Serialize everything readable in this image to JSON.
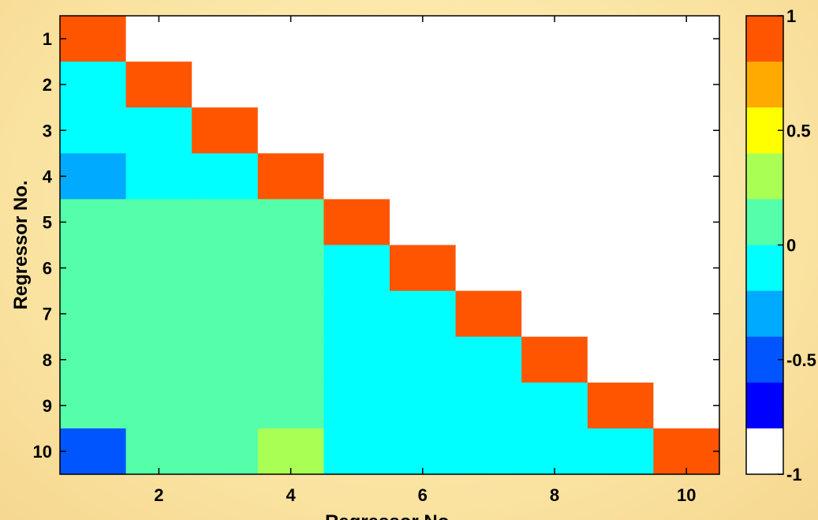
{
  "chart_data": {
    "type": "heatmap",
    "title": "",
    "xlabel": "Regressor No.",
    "ylabel": "Regressor No.",
    "rows": [
      1,
      2,
      3,
      4,
      5,
      6,
      7,
      8,
      9,
      10
    ],
    "cols": [
      1,
      2,
      3,
      4,
      5,
      6,
      7,
      8,
      9,
      10
    ],
    "x_ticks": [
      "2",
      "4",
      "6",
      "8",
      "10"
    ],
    "y_ticks": [
      "1",
      "2",
      "3",
      "4",
      "5",
      "6",
      "7",
      "8",
      "9",
      "10"
    ],
    "matrix": [
      [
        1,
        null,
        null,
        null,
        null,
        null,
        null,
        null,
        null,
        null
      ],
      [
        -0.1,
        1,
        null,
        null,
        null,
        null,
        null,
        null,
        null,
        null
      ],
      [
        -0.1,
        -0.1,
        1,
        null,
        null,
        null,
        null,
        null,
        null,
        null
      ],
      [
        -0.3,
        -0.1,
        -0.1,
        1,
        null,
        null,
        null,
        null,
        null,
        null
      ],
      [
        0.1,
        0.1,
        0.1,
        0.1,
        1,
        null,
        null,
        null,
        null,
        null
      ],
      [
        0.1,
        0.1,
        0.1,
        0.1,
        -0.1,
        1,
        null,
        null,
        null,
        null
      ],
      [
        0.1,
        0.1,
        0.1,
        0.1,
        -0.1,
        -0.1,
        1,
        null,
        null,
        null
      ],
      [
        0.1,
        0.1,
        0.1,
        0.1,
        -0.1,
        -0.1,
        -0.1,
        1,
        null,
        null
      ],
      [
        0.1,
        0.1,
        0.1,
        0.1,
        -0.1,
        -0.1,
        -0.1,
        -0.1,
        1,
        null
      ],
      [
        -0.5,
        0.1,
        0.1,
        0.3,
        -0.1,
        -0.1,
        -0.1,
        -0.1,
        -0.1,
        1
      ]
    ],
    "colorbar": {
      "range": [
        -1,
        1
      ],
      "tick_labels": [
        "1",
        "0.5",
        "0",
        "-0.5",
        "-1"
      ],
      "tick_values": [
        1,
        0.5,
        0,
        -0.5,
        -1
      ],
      "colors_top_to_bottom": [
        "#ff5500",
        "#ffaa00",
        "#ffff00",
        "#aaff55",
        "#55ffaa",
        "#00ffff",
        "#00aaff",
        "#0055ff",
        "#0000ff",
        "#ffffff"
      ]
    }
  }
}
